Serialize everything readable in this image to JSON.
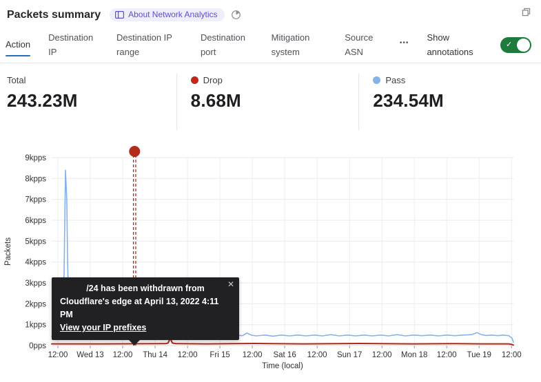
{
  "header": {
    "title": "Packets summary",
    "about_badge": "About Network Analytics"
  },
  "icons": {
    "more": "•••",
    "close": "✕",
    "check": "✓"
  },
  "ui": {
    "tab_accent": "#2a6cbe",
    "toggle_on_color": "#1f7a3d",
    "badge_bg": "#efeefb",
    "badge_fg": "#5a50cb"
  },
  "tabs": {
    "items": [
      {
        "label": "Action",
        "active": true
      },
      {
        "label": "Destination IP",
        "active": false
      },
      {
        "label": "Destination IP range",
        "active": false
      },
      {
        "label": "Destination port",
        "active": false
      },
      {
        "label": "Mitigation system",
        "active": false
      },
      {
        "label": "Source ASN",
        "active": false
      }
    ],
    "annotations_label": "Show annotations",
    "annotations_state": "on"
  },
  "stats": {
    "items": [
      {
        "label": "Total",
        "value": "243.23M",
        "color": null
      },
      {
        "label": "Drop",
        "value": "8.68M",
        "color": "#c0281e"
      },
      {
        "label": "Pass",
        "value": "234.54M",
        "color": "#85b1ed"
      }
    ]
  },
  "chart_data": {
    "type": "line",
    "title": "",
    "xlabel": "Time (local)",
    "ylabel": "Packets",
    "x_unit": "hours from chart start (≈ Apr 12 10:00 local, ticks every 12h)",
    "xlim": [
      0,
      171
    ],
    "ylim_kpps": [
      0,
      9
    ],
    "grid": true,
    "legend_position": "none (legend shown in summary stats above)",
    "y_ticks": [
      "0pps",
      "1kpps",
      "2kpps",
      "3kpps",
      "4kpps",
      "5kpps",
      "6kpps",
      "7kpps",
      "8kpps",
      "9kpps"
    ],
    "x_ticks": [
      {
        "h": 2.3,
        "label": "12:00"
      },
      {
        "h": 14.3,
        "label": "Wed 13"
      },
      {
        "h": 26.3,
        "label": "12:00"
      },
      {
        "h": 38.3,
        "label": "Thu 14"
      },
      {
        "h": 50.3,
        "label": "12:00"
      },
      {
        "h": 62.3,
        "label": "Fri 15"
      },
      {
        "h": 74.3,
        "label": "12:00"
      },
      {
        "h": 86.3,
        "label": "Sat 16"
      },
      {
        "h": 98.3,
        "label": "12:00"
      },
      {
        "h": 110.3,
        "label": "Sun 17"
      },
      {
        "h": 122.3,
        "label": "12:00"
      },
      {
        "h": 134.3,
        "label": "Mon 18"
      },
      {
        "h": 146.3,
        "label": "12:00"
      },
      {
        "h": 158.3,
        "label": "Tue 19"
      },
      {
        "h": 170.3,
        "label": "12:00"
      }
    ],
    "series": [
      {
        "name": "Pass",
        "color": "#85b1ed",
        "width": 1.6,
        "points": [
          [
            0,
            0.45
          ],
          [
            3.3,
            0.45
          ],
          [
            4.1,
            0.8
          ],
          [
            4.6,
            3.5
          ],
          [
            5.1,
            8.4
          ],
          [
            5.6,
            7.0
          ],
          [
            5.9,
            4.0
          ],
          [
            6.4,
            1.3
          ],
          [
            7.4,
            0.95
          ],
          [
            8.9,
            0.6
          ],
          [
            11,
            0.5
          ],
          [
            14,
            0.45
          ],
          [
            17.1,
            0.48
          ],
          [
            19.2,
            0.44
          ],
          [
            20.9,
            0.55
          ],
          [
            21.7,
            0.78
          ],
          [
            22.5,
            0.68
          ],
          [
            23.2,
            0.52
          ],
          [
            24.3,
            0.5
          ],
          [
            26.3,
            0.46
          ],
          [
            28.3,
            0.5
          ],
          [
            29.4,
            0.62
          ],
          [
            30.9,
            0.52
          ],
          [
            31.9,
            0.48
          ],
          [
            34.5,
            0.5
          ],
          [
            36.5,
            0.46
          ],
          [
            38.6,
            0.55
          ],
          [
            40.1,
            0.6
          ],
          [
            41.6,
            0.5
          ],
          [
            43.7,
            0.47
          ],
          [
            45.7,
            0.52
          ],
          [
            47.7,
            0.46
          ],
          [
            51.1,
            0.5
          ],
          [
            54.9,
            0.46
          ],
          [
            57.4,
            0.52
          ],
          [
            60,
            0.46
          ],
          [
            62.6,
            0.5
          ],
          [
            65.1,
            0.45
          ],
          [
            67.7,
            0.5
          ],
          [
            70.7,
            0.47
          ],
          [
            72.3,
            0.6
          ],
          [
            73.8,
            0.5
          ],
          [
            75.8,
            0.46
          ],
          [
            78.9,
            0.5
          ],
          [
            82,
            0.45
          ],
          [
            85,
            0.5
          ],
          [
            88.1,
            0.46
          ],
          [
            91.1,
            0.5
          ],
          [
            94.2,
            0.46
          ],
          [
            97.3,
            0.5
          ],
          [
            100.3,
            0.46
          ],
          [
            103.4,
            0.52
          ],
          [
            106.5,
            0.46
          ],
          [
            109.5,
            0.5
          ],
          [
            112.6,
            0.46
          ],
          [
            115.7,
            0.5
          ],
          [
            118.7,
            0.46
          ],
          [
            121.8,
            0.5
          ],
          [
            124.8,
            0.46
          ],
          [
            127.9,
            0.52
          ],
          [
            131,
            0.46
          ],
          [
            134,
            0.5
          ],
          [
            137.1,
            0.47
          ],
          [
            140.2,
            0.5
          ],
          [
            143.2,
            0.46
          ],
          [
            146.3,
            0.5
          ],
          [
            149.3,
            0.47
          ],
          [
            152.4,
            0.5
          ],
          [
            155.5,
            0.52
          ],
          [
            157.5,
            0.62
          ],
          [
            159.1,
            0.52
          ],
          [
            161.1,
            0.48
          ],
          [
            163.1,
            0.5
          ],
          [
            165.2,
            0.47
          ],
          [
            167.2,
            0.5
          ],
          [
            169.3,
            0.47
          ],
          [
            170.5,
            0.35
          ],
          [
            171,
            0.15
          ]
        ]
      },
      {
        "name": "Drop",
        "color": "#b2261b",
        "width": 2,
        "points": [
          [
            0,
            0.08
          ],
          [
            19,
            0.08
          ],
          [
            42.1,
            0.09
          ],
          [
            43.1,
            0.12
          ],
          [
            43.9,
            0.35
          ],
          [
            44.7,
            0.12
          ],
          [
            46,
            0.09
          ],
          [
            57.4,
            0.08
          ],
          [
            75.3,
            0.1
          ],
          [
            93.2,
            0.08
          ],
          [
            113.6,
            0.1
          ],
          [
            134,
            0.08
          ],
          [
            149.3,
            0.09
          ],
          [
            159.6,
            0.08
          ],
          [
            169.3,
            0.08
          ],
          [
            170.5,
            0.05
          ],
          [
            171,
            0.02
          ]
        ]
      }
    ],
    "annotation": {
      "h": 30.7,
      "color": "#a5291b",
      "dot_color": "#b42a1b",
      "tooltip": {
        "line1": "/24 has been withdrawn from",
        "line2": "Cloudflare's edge at April 13, 2022 4:11 PM",
        "link": "View your IP prefixes"
      }
    }
  }
}
